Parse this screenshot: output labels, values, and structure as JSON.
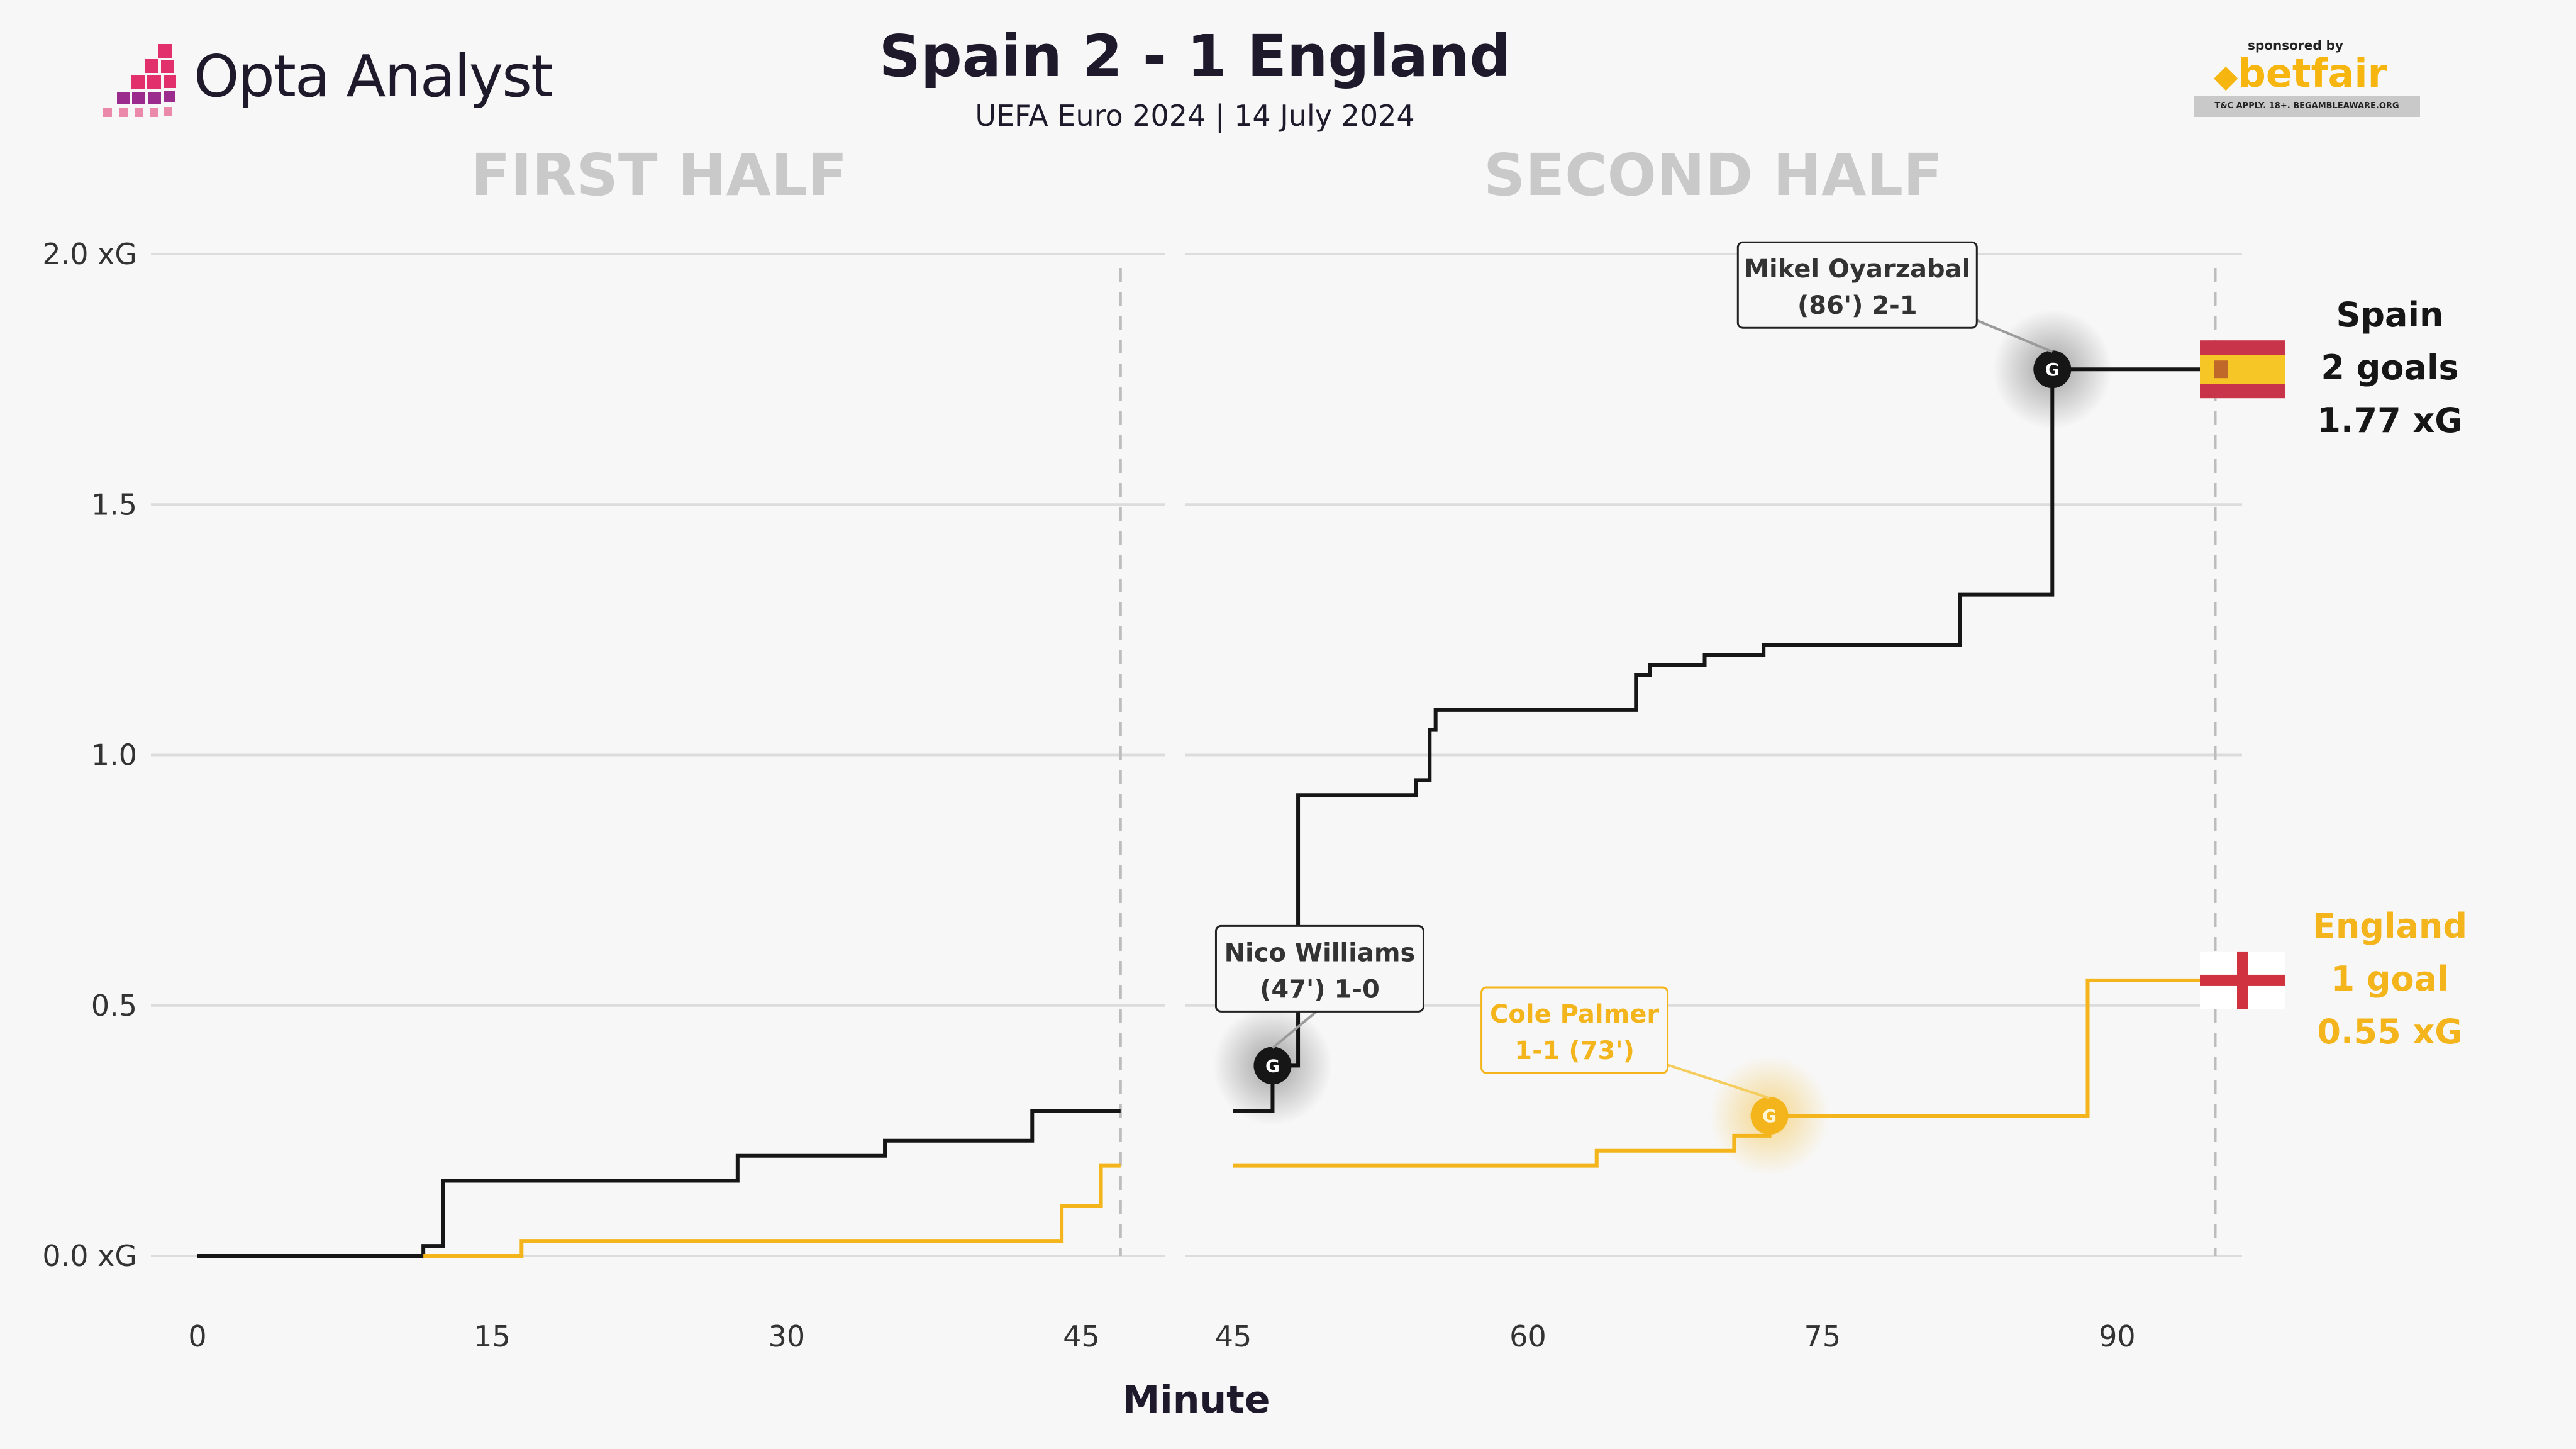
{
  "header": {
    "brand": "Opta Analyst",
    "title": "Spain 2 - 1 England",
    "subtitle": "UEFA Euro 2024 | 14 July 2024",
    "sponsor_tag": "sponsored by",
    "sponsor_name": "betfair",
    "sponsor_disclaimer": "T&C APPLY. 18+. BEGAMBLEAWARE.ORG"
  },
  "colors": {
    "spain": "#161616",
    "england": "#f3b51b",
    "grid": "#dcdcdc",
    "half_title": "#c9c9c9",
    "spain_flag_red": "#c8354a",
    "spain_flag_yellow": "#f6c626",
    "england_flag_red": "#d0323f"
  },
  "chart_data": {
    "type": "line",
    "step": true,
    "xlabel": "Minute",
    "ylabel": "",
    "ylim": [
      0,
      2.0
    ],
    "y_ticks": [
      {
        "value": 0,
        "label": "0.0 xG"
      },
      {
        "value": 0.5,
        "label": "0.5"
      },
      {
        "value": 1.0,
        "label": "1.0"
      },
      {
        "value": 1.5,
        "label": "1.5"
      },
      {
        "value": 2.0,
        "label": "2.0 xG"
      }
    ],
    "grid": true,
    "panels": [
      {
        "title": "FIRST HALF",
        "xlim": [
          0,
          47
        ],
        "end_minute": 47,
        "x_ticks": [
          0,
          15,
          30,
          45
        ],
        "series": [
          {
            "team": "Spain",
            "color_key": "spain",
            "x": [
              0,
              11.5,
              12.5,
              27.5,
              35,
              42.5,
              47
            ],
            "y": [
              0,
              0.02,
              0.15,
              0.2,
              0.23,
              0.29,
              0.29
            ]
          },
          {
            "team": "England",
            "color_key": "england",
            "x": [
              11.5,
              16.5,
              44,
              46,
              47
            ],
            "y": [
              0,
              0.03,
              0.1,
              0.18,
              0.18
            ]
          }
        ],
        "goals": []
      },
      {
        "title": "SECOND HALF",
        "xlim": [
          43,
          97
        ],
        "end_minute": 95,
        "x_ticks": [
          45,
          60,
          75,
          90
        ],
        "series": [
          {
            "team": "Spain",
            "color_key": "spain",
            "x": [
              45,
              46,
              47,
              48.3,
              54.3,
              55,
              55.3,
              65.5,
              66.2,
              69,
              72,
              82,
              86.7,
              95
            ],
            "y": [
              0.29,
              0.29,
              0.38,
              0.92,
              0.95,
              1.05,
              1.09,
              1.16,
              1.18,
              1.2,
              1.22,
              1.32,
              1.77,
              1.77
            ],
            "end_label": {
              "team": "Spain",
              "goals": "2 goals",
              "xg": "1.77 xG"
            }
          },
          {
            "team": "England",
            "color_key": "england",
            "x": [
              45,
              63.5,
              70.5,
              72.3,
              88.5,
              95
            ],
            "y": [
              0.18,
              0.21,
              0.24,
              0.28,
              0.55,
              0.55
            ],
            "end_label": {
              "team": "England",
              "goals": "1 goal",
              "xg": "0.55 xG"
            }
          }
        ],
        "goals": [
          {
            "team": "Spain",
            "x": 47,
            "y": 0.38,
            "label_line1": "Nico Williams",
            "label_line2": "(47') 1-0",
            "label_pos": "above"
          },
          {
            "team": "England",
            "x": 72.3,
            "y": 0.28,
            "label_line1": "Cole Palmer",
            "label_line2": "1-1 (73')",
            "label_pos": "upper-left"
          },
          {
            "team": "Spain",
            "x": 86.7,
            "y": 1.77,
            "label_line1": "Mikel Oyarzabal",
            "label_line2": "(86') 2-1",
            "label_pos": "upper-left"
          }
        ]
      }
    ],
    "goal_marker_text": "G"
  }
}
